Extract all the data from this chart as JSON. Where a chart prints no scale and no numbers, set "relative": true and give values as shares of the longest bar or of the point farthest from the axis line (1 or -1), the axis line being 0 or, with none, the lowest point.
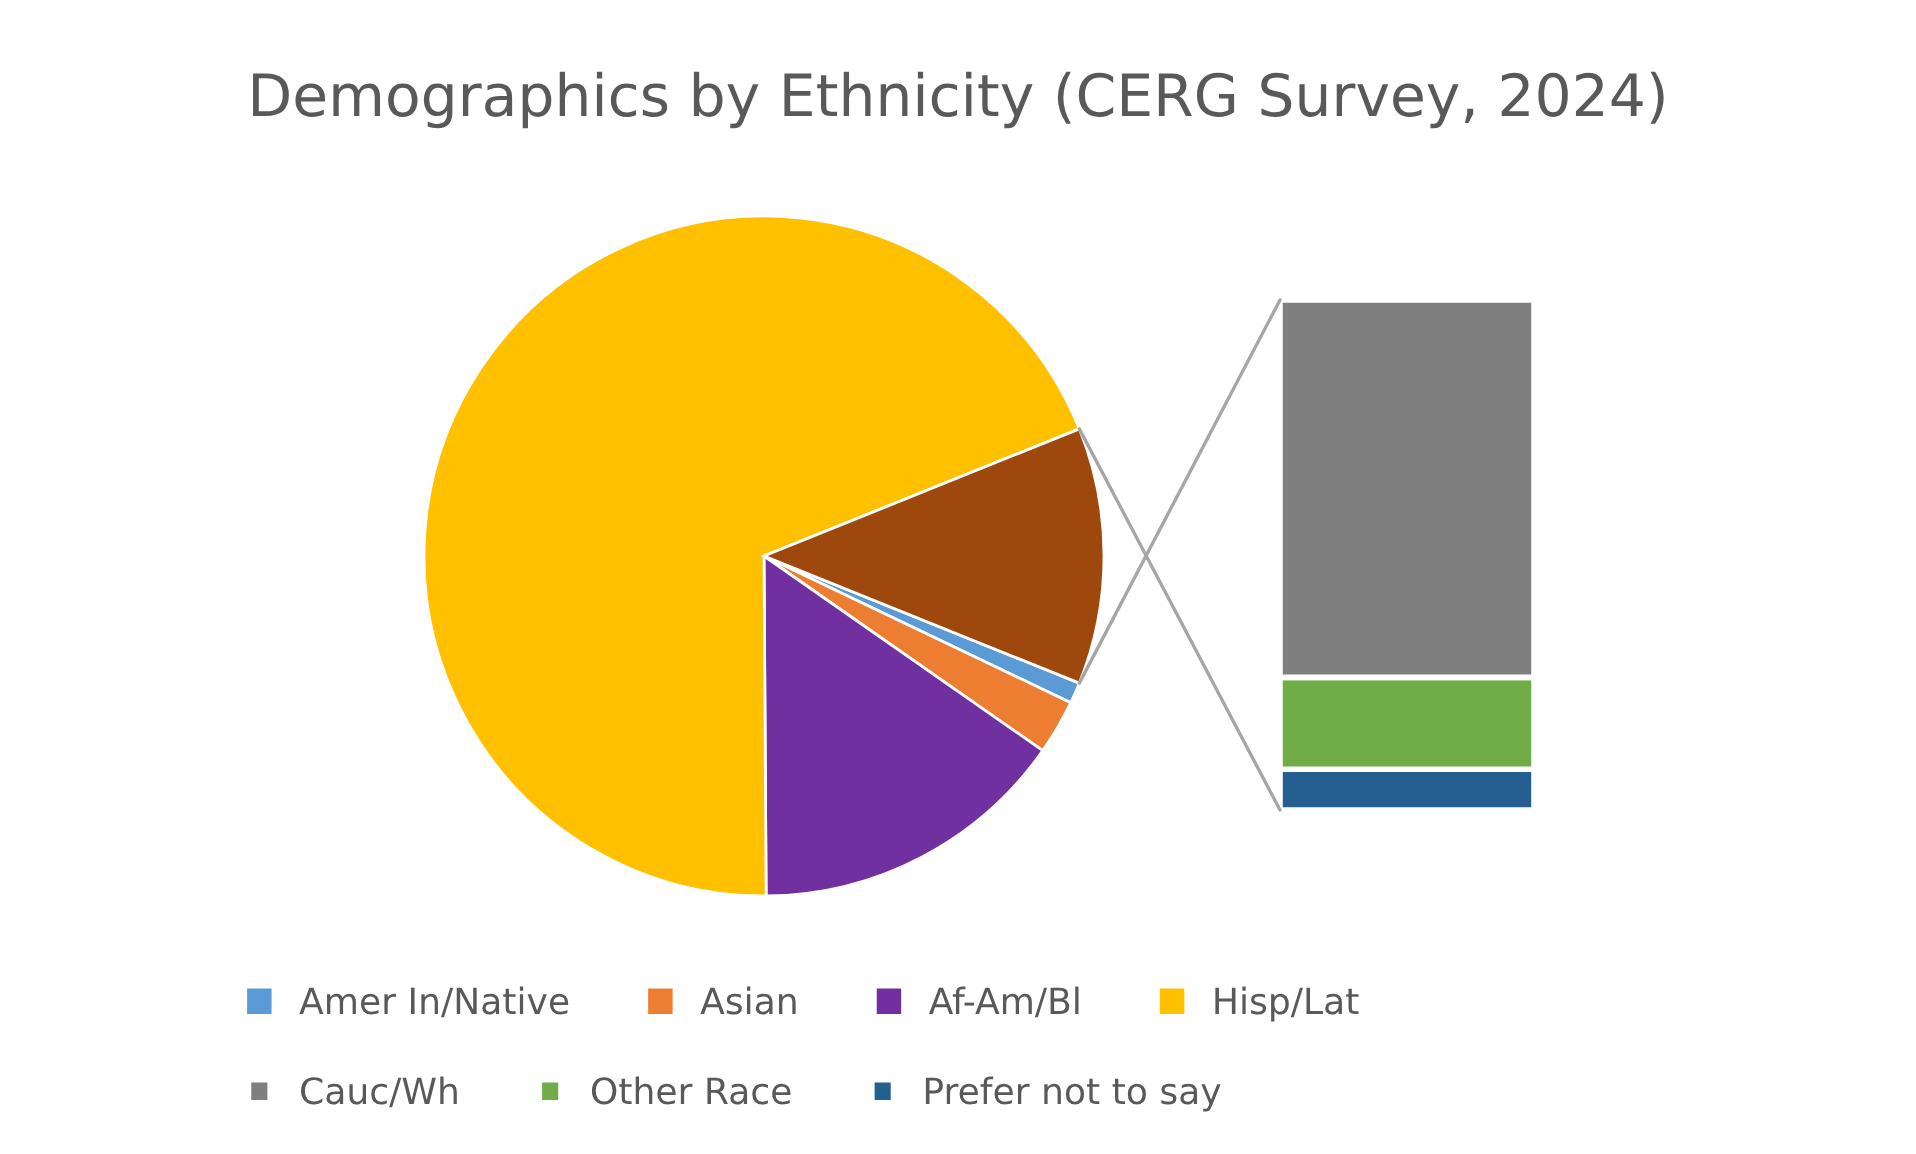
{
  "chart_data": [
    {
      "type": "pie",
      "title": "Demographics by Ethnicity (CERG Survey, 2024)",
      "categories": [
        "Amer In/Native",
        "Asian",
        "Af-Am/Bl",
        "Hisp/Lat",
        null
      ],
      "values": [
        1,
        2.6,
        15.2,
        69,
        12.2
      ],
      "colors": [
        "#5b9bd5",
        "#ed7d31",
        "#7030a0",
        "#ffc000",
        "#9e480e"
      ],
      "legend": "bottom"
    },
    {
      "type": "bar",
      "relative": true,
      "stacked": true,
      "legend": "bottom",
      "categories": [
        null
      ],
      "series": [
        {
          "name": "Prefer not to say",
          "color": "#255e91",
          "values": [
            0.08
          ]
        },
        {
          "name": "Other Race",
          "color": "#70ad47",
          "values": [
            0.18
          ]
        },
        {
          "name": "Cauc/Wh",
          "color": "#7f7f7f",
          "values": [
            0.74
          ]
        }
      ]
    }
  ]
}
